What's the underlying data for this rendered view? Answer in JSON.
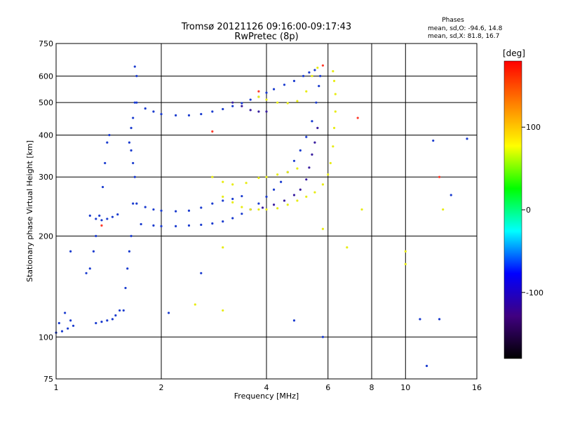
{
  "chart_data": {
    "type": "scatter",
    "title": "Tromsø 20121126 09:16:00-09:17:43",
    "subtitle": "RwPretec (8p)",
    "xlabel": "Frequency [MHz]",
    "ylabel": "Stationary phase Virtual Height [km]",
    "x_scale": "log",
    "y_scale": "log",
    "xlim": [
      1,
      16
    ],
    "ylim": [
      75,
      750
    ],
    "x_ticks": [
      1,
      2,
      4,
      6,
      8,
      10,
      16
    ],
    "y_ticks": [
      75,
      100,
      200,
      300,
      400,
      500,
      600,
      750
    ],
    "grid": true,
    "stats": {
      "header": "Phases",
      "line_o": "mean, sd,O: -94.6, 14.8",
      "line_x": "mean, sd,X:  81.8, 16.7"
    },
    "colorbar": {
      "label": "[deg]",
      "range": [
        -180,
        180
      ],
      "ticks": [
        100,
        0,
        -100
      ],
      "colors": [
        "#ff0000",
        "#ff8000",
        "#ffff00",
        "#00ff00",
        "#00ffff",
        "#0000ff",
        "#400080",
        "#000000"
      ]
    },
    "series": [
      {
        "color": "#1b3ccf",
        "points": [
          [
            1.0,
            103
          ],
          [
            1.04,
            104
          ],
          [
            1.08,
            106
          ],
          [
            1.12,
            108
          ],
          [
            1.02,
            110
          ],
          [
            1.1,
            112
          ],
          [
            1.06,
            118
          ],
          [
            1.3,
            110
          ],
          [
            1.35,
            111
          ],
          [
            1.4,
            112
          ],
          [
            1.45,
            113
          ],
          [
            1.48,
            116
          ],
          [
            1.52,
            120
          ]
        ]
      },
      {
        "color": "#1b3ccf",
        "points": [
          [
            1.22,
            155
          ],
          [
            1.25,
            160
          ],
          [
            1.28,
            180
          ],
          [
            1.3,
            200
          ],
          [
            1.33,
            230
          ],
          [
            1.36,
            280
          ],
          [
            1.38,
            330
          ],
          [
            1.4,
            380
          ],
          [
            1.42,
            400
          ],
          [
            1.25,
            230
          ],
          [
            1.3,
            225
          ],
          [
            1.35,
            223
          ],
          [
            1.4,
            225
          ],
          [
            1.45,
            228
          ],
          [
            1.5,
            232
          ]
        ]
      },
      {
        "color": "#1b3ccf",
        "points": [
          [
            1.56,
            120
          ],
          [
            1.58,
            140
          ],
          [
            1.6,
            160
          ],
          [
            1.62,
            180
          ],
          [
            1.64,
            200
          ],
          [
            1.66,
            250
          ],
          [
            1.68,
            300
          ],
          [
            1.66,
            330
          ],
          [
            1.64,
            360
          ],
          [
            1.62,
            380
          ],
          [
            1.64,
            420
          ],
          [
            1.66,
            450
          ],
          [
            1.68,
            500
          ],
          [
            1.7,
            600
          ],
          [
            1.68,
            640
          ]
        ]
      },
      {
        "color": "#1b3ccf",
        "points": [
          [
            1.7,
            500
          ],
          [
            1.8,
            480
          ],
          [
            1.9,
            470
          ],
          [
            2.0,
            462
          ],
          [
            2.2,
            458
          ],
          [
            2.4,
            458
          ],
          [
            2.6,
            462
          ],
          [
            2.8,
            470
          ],
          [
            3.0,
            478
          ],
          [
            3.2,
            488
          ],
          [
            3.4,
            498
          ],
          [
            3.6,
            510
          ],
          [
            3.8,
            520
          ],
          [
            4.0,
            535
          ],
          [
            4.2,
            548
          ],
          [
            4.5,
            565
          ],
          [
            4.8,
            580
          ],
          [
            5.1,
            600
          ],
          [
            5.3,
            615
          ],
          [
            5.5,
            625
          ]
        ]
      },
      {
        "color": "#1b3ccf",
        "points": [
          [
            1.7,
            250
          ],
          [
            1.8,
            244
          ],
          [
            1.9,
            240
          ],
          [
            2.0,
            238
          ],
          [
            2.2,
            237
          ],
          [
            2.4,
            238
          ],
          [
            2.6,
            243
          ],
          [
            2.8,
            250
          ],
          [
            3.0,
            255
          ],
          [
            3.2,
            258
          ],
          [
            3.4,
            263
          ]
        ]
      },
      {
        "color": "#1b3ccf",
        "points": [
          [
            1.75,
            217
          ],
          [
            1.9,
            215
          ],
          [
            2.0,
            214
          ],
          [
            2.2,
            214
          ],
          [
            2.4,
            215
          ],
          [
            2.6,
            216
          ],
          [
            2.8,
            218
          ],
          [
            3.0,
            221
          ],
          [
            3.2,
            226
          ],
          [
            3.4,
            233
          ],
          [
            3.6,
            240
          ],
          [
            3.8,
            250
          ],
          [
            4.0,
            262
          ],
          [
            4.2,
            275
          ],
          [
            4.4,
            290
          ],
          [
            4.6,
            310
          ],
          [
            4.8,
            335
          ],
          [
            5.0,
            360
          ],
          [
            5.2,
            395
          ],
          [
            5.4,
            440
          ],
          [
            5.55,
            500
          ],
          [
            5.65,
            560
          ],
          [
            5.7,
            600
          ]
        ]
      },
      {
        "color": "#3a1fa0",
        "points": [
          [
            3.2,
            500
          ],
          [
            3.4,
            488
          ],
          [
            3.6,
            475
          ],
          [
            3.8,
            470
          ],
          [
            4.0,
            470
          ]
        ]
      },
      {
        "color": "#3a1fa0",
        "points": [
          [
            3.6,
            240
          ],
          [
            3.9,
            243
          ],
          [
            4.2,
            248
          ],
          [
            4.5,
            255
          ],
          [
            4.8,
            265
          ],
          [
            5.0,
            275
          ],
          [
            5.2,
            295
          ],
          [
            5.3,
            320
          ],
          [
            5.4,
            350
          ],
          [
            5.5,
            380
          ],
          [
            5.6,
            420
          ]
        ]
      },
      {
        "color": "#e8ec14",
        "points": [
          [
            2.8,
            300
          ],
          [
            3.0,
            290
          ],
          [
            3.2,
            285
          ],
          [
            3.5,
            288
          ],
          [
            3.8,
            298
          ],
          [
            4.0,
            300
          ],
          [
            4.3,
            305
          ],
          [
            4.6,
            310
          ],
          [
            4.9,
            318
          ]
        ]
      },
      {
        "color": "#e8ec14",
        "points": [
          [
            3.0,
            262
          ],
          [
            3.2,
            252
          ],
          [
            3.4,
            244
          ],
          [
            3.6,
            240
          ],
          [
            3.8,
            240
          ],
          [
            4.0,
            240
          ],
          [
            4.3,
            242
          ],
          [
            4.6,
            248
          ],
          [
            4.9,
            255
          ],
          [
            5.2,
            262
          ],
          [
            5.5,
            270
          ],
          [
            5.8,
            285
          ],
          [
            6.0,
            305
          ],
          [
            6.1,
            330
          ],
          [
            6.2,
            370
          ],
          [
            6.25,
            420
          ],
          [
            6.3,
            470
          ],
          [
            6.3,
            530
          ],
          [
            6.25,
            580
          ],
          [
            6.2,
            620
          ]
        ]
      },
      {
        "color": "#e8ec14",
        "points": [
          [
            3.8,
            520
          ],
          [
            4.0,
            510
          ],
          [
            4.3,
            500
          ],
          [
            4.6,
            498
          ],
          [
            4.9,
            505
          ],
          [
            5.2,
            540
          ],
          [
            5.4,
            600
          ],
          [
            5.6,
            635
          ]
        ]
      },
      {
        "color": "#ff3a2a",
        "points": [
          [
            2.8,
            410
          ],
          [
            3.8,
            540
          ],
          [
            7.3,
            450
          ],
          [
            5.8,
            645
          ],
          [
            1.35,
            215
          ],
          [
            12.5,
            300
          ]
        ]
      },
      {
        "color": "#1b3ccf",
        "points": [
          [
            1.1,
            180
          ],
          [
            2.6,
            155
          ],
          [
            2.1,
            118
          ],
          [
            4.8,
            112
          ],
          [
            5.8,
            100
          ],
          [
            11.0,
            113
          ],
          [
            12.5,
            113
          ],
          [
            12.0,
            385
          ],
          [
            15.0,
            390
          ],
          [
            13.5,
            265
          ],
          [
            11.5,
            82
          ]
        ]
      },
      {
        "color": "#e8ec14",
        "points": [
          [
            2.5,
            125
          ],
          [
            3.0,
            120
          ],
          [
            5.8,
            210
          ],
          [
            6.8,
            185
          ],
          [
            7.5,
            240
          ],
          [
            10.0,
            180
          ],
          [
            10.0,
            165
          ],
          [
            12.8,
            240
          ],
          [
            3.0,
            185
          ]
        ]
      }
    ]
  }
}
